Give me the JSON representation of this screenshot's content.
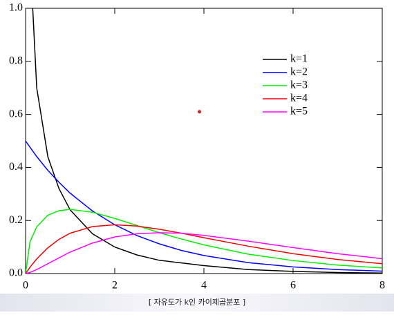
{
  "chart_data": {
    "type": "line",
    "x": [
      0,
      0.1,
      0.25,
      0.5,
      0.75,
      1,
      1.5,
      2,
      2.5,
      3,
      3.5,
      4,
      5,
      6,
      7,
      8
    ],
    "series": [
      {
        "name": "k=1",
        "color": "#000000",
        "values": [
          null,
          1.2,
          0.7,
          0.44,
          0.32,
          0.24,
          0.15,
          0.1,
          0.07,
          0.05,
          0.04,
          0.03,
          0.015,
          0.008,
          0.004,
          0.002
        ]
      },
      {
        "name": "k=2",
        "color": "#0000ff",
        "values": [
          0.5,
          0.476,
          0.441,
          0.389,
          0.344,
          0.303,
          0.236,
          0.184,
          0.143,
          0.112,
          0.087,
          0.068,
          0.041,
          0.025,
          0.015,
          0.009
        ]
      },
      {
        "name": "k=3",
        "color": "#00ee00",
        "values": [
          0,
          0.12,
          0.176,
          0.22,
          0.237,
          0.242,
          0.231,
          0.208,
          0.181,
          0.154,
          0.13,
          0.108,
          0.073,
          0.049,
          0.032,
          0.021
        ]
      },
      {
        "name": "k=4",
        "color": "#ee0000",
        "values": [
          0,
          0.024,
          0.055,
          0.097,
          0.129,
          0.152,
          0.177,
          0.184,
          0.179,
          0.167,
          0.152,
          0.135,
          0.103,
          0.075,
          0.053,
          0.037
        ]
      },
      {
        "name": "k=5",
        "color": "#ff00ff",
        "values": [
          0,
          0.004,
          0.015,
          0.037,
          0.059,
          0.081,
          0.115,
          0.138,
          0.15,
          0.154,
          0.152,
          0.144,
          0.122,
          0.098,
          0.075,
          0.056
        ]
      }
    ],
    "marker": {
      "x": 3.9,
      "y": 0.61,
      "color": "#cc2222"
    },
    "xlim": [
      0,
      8
    ],
    "xticks": [
      0,
      2,
      4,
      6,
      8
    ],
    "ylim": [
      0,
      1
    ],
    "yticks": [
      {
        "value": 0,
        "label": "0.0"
      },
      {
        "value": 0.2,
        "label": "0.2"
      },
      {
        "value": 0.4,
        "label": "0.4"
      },
      {
        "value": 0.6,
        "label": "0.6"
      },
      {
        "value": 0.8,
        "label": "0.8"
      },
      {
        "value": 1,
        "label": "1.0"
      }
    ],
    "legend": "upper right",
    "caption": "[ 자유도가 k인 카이제곱분포 ]"
  }
}
